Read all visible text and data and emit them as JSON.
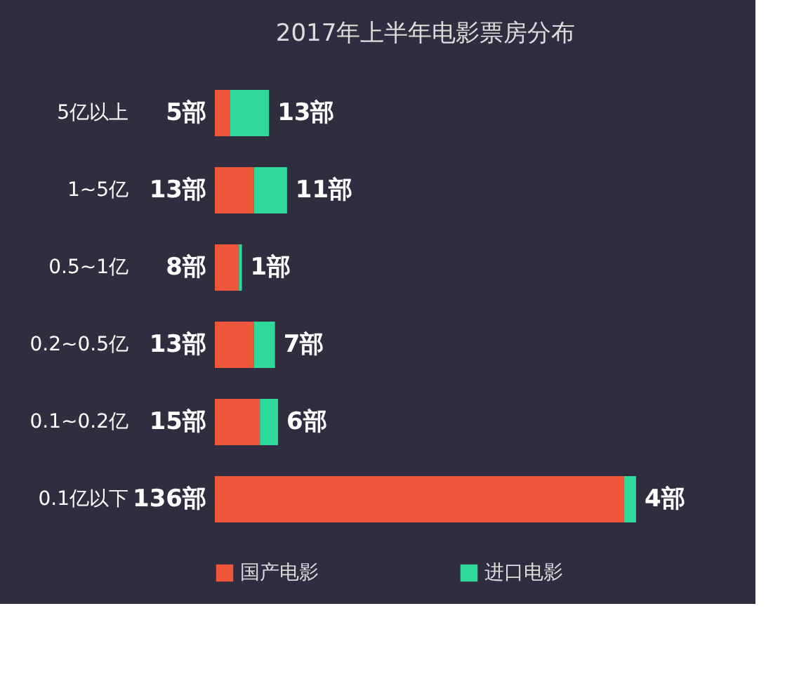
{
  "chart_data": {
    "type": "bar",
    "orientation": "horizontal",
    "title": "2017年上半年电影票房分布",
    "categories": [
      "5亿以上",
      "1~5亿",
      "0.5~1亿",
      "0.2~0.5亿",
      "0.1~0.2亿",
      "0.1亿以下"
    ],
    "series": [
      {
        "name": "国产电影",
        "color": "#f0563c",
        "values": [
          5,
          13,
          8,
          13,
          15,
          136
        ],
        "value_labels": [
          "5部",
          "13部",
          "8部",
          "13部",
          "15部",
          "136部"
        ]
      },
      {
        "name": "进口电影",
        "color": "#2fd89b",
        "values": [
          13,
          11,
          1,
          7,
          6,
          4
        ],
        "value_labels": [
          "13部",
          "11部",
          "1部",
          "7部",
          "6部",
          "4部"
        ]
      }
    ],
    "stacked": true,
    "legend": "bottom"
  }
}
